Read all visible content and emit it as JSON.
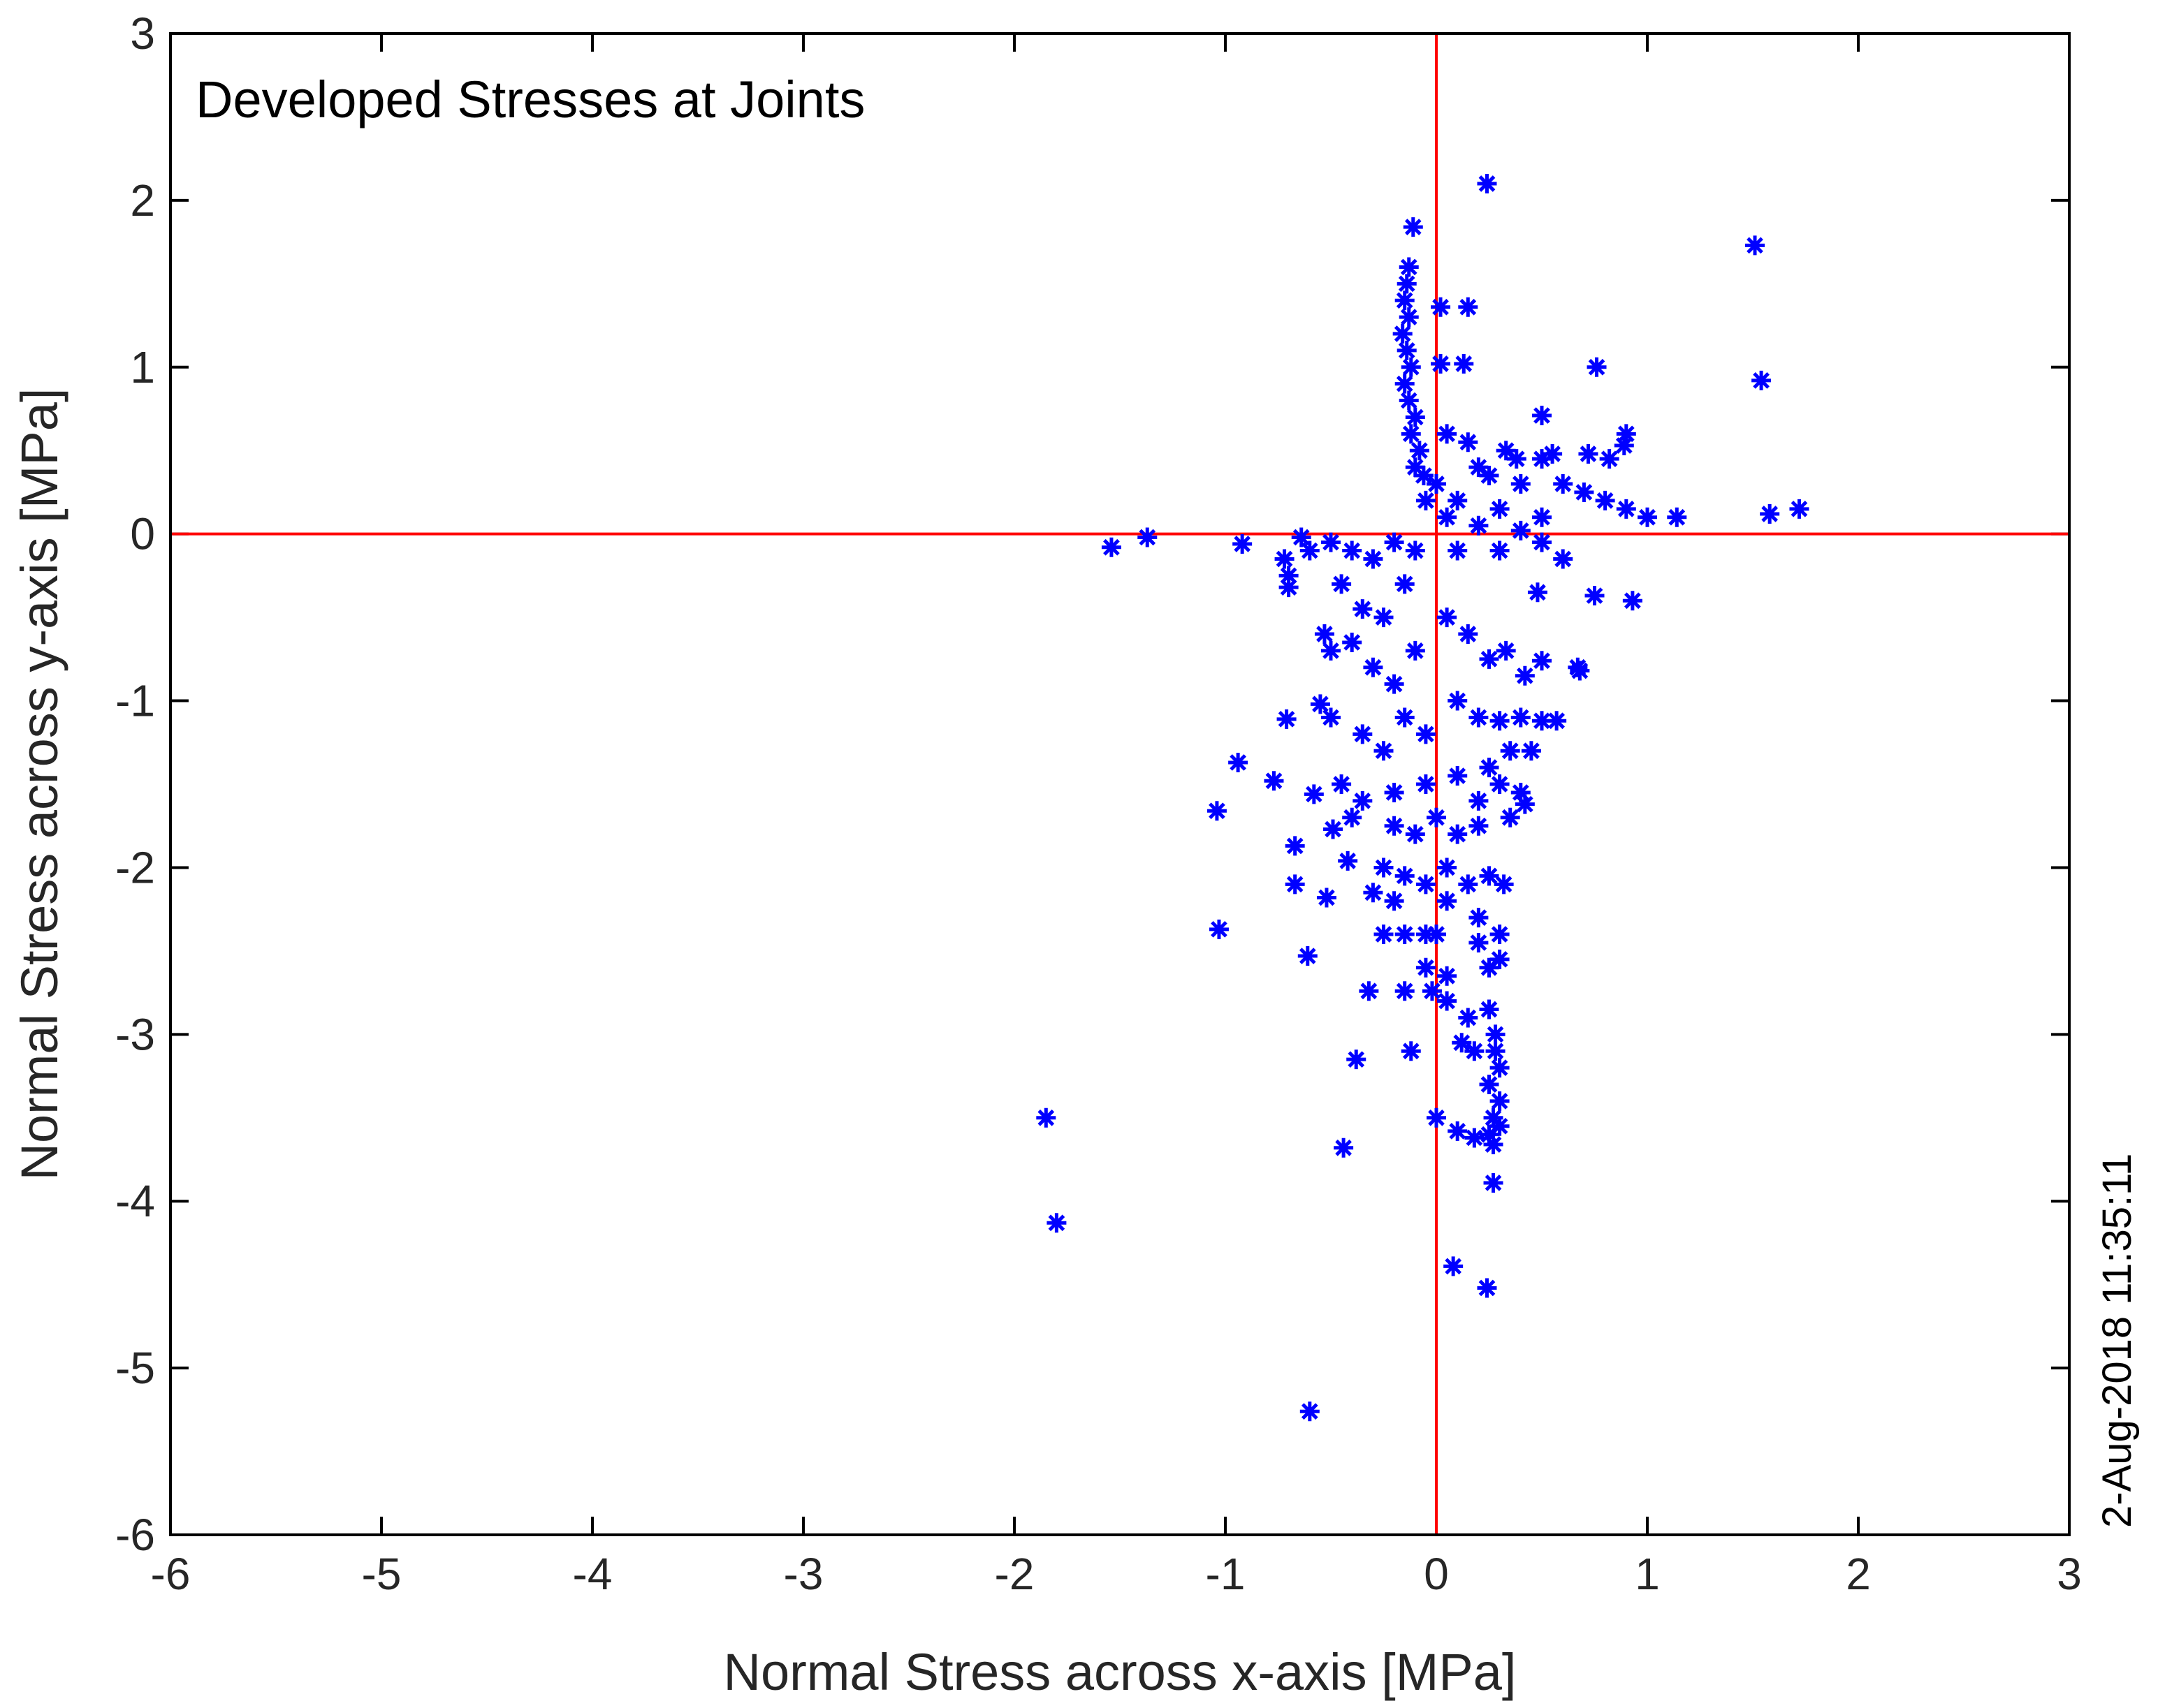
{
  "chart_data": {
    "type": "scatter",
    "annotation": "Developed Stresses at Joints",
    "xlabel": "Normal Stress across x-axis [MPa]",
    "ylabel": "Normal Stress across y-axis [MPa]",
    "timestamp": "2-Aug-2018 11:35:11",
    "xlim": [
      -6,
      3
    ],
    "ylim": [
      -6,
      3
    ],
    "xticks": [
      -6,
      -5,
      -4,
      -3,
      -2,
      -1,
      0,
      1,
      2,
      3
    ],
    "yticks": [
      -6,
      -5,
      -4,
      -3,
      -2,
      -1,
      0,
      1,
      2,
      3
    ],
    "grid": false,
    "legend": "none",
    "marker": "asterisk",
    "colors": {
      "marker": "#0000ff",
      "reference_lines": "#ff0000",
      "axes": "#000000"
    },
    "reference_lines": {
      "x": 0,
      "y": 0
    },
    "series": [
      {
        "points": [
          [
            0.24,
            2.1
          ],
          [
            -0.11,
            1.84
          ],
          [
            1.51,
            1.73
          ],
          [
            1.54,
            0.92
          ],
          [
            1.58,
            0.12
          ],
          [
            1.72,
            0.15
          ],
          [
            -0.13,
            1.6
          ],
          [
            -0.14,
            1.5
          ],
          [
            -0.15,
            1.4
          ],
          [
            -0.13,
            1.3
          ],
          [
            -0.16,
            1.2
          ],
          [
            -0.14,
            1.1
          ],
          [
            -0.12,
            1.0
          ],
          [
            -0.15,
            0.9
          ],
          [
            -0.13,
            0.8
          ],
          [
            -0.1,
            0.7
          ],
          [
            -0.12,
            0.6
          ],
          [
            -0.08,
            0.5
          ],
          [
            -0.1,
            0.4
          ],
          [
            -0.06,
            0.35
          ],
          [
            0.02,
            1.36
          ],
          [
            0.15,
            1.36
          ],
          [
            0.02,
            1.02
          ],
          [
            0.13,
            1.02
          ],
          [
            0.76,
            1.0
          ],
          [
            0.5,
            0.71
          ],
          [
            0.9,
            0.6
          ],
          [
            0.89,
            0.53
          ],
          [
            0.33,
            0.5
          ],
          [
            0.38,
            0.45
          ],
          [
            0.5,
            0.45
          ],
          [
            0.55,
            0.48
          ],
          [
            0.72,
            0.48
          ],
          [
            0.82,
            0.45
          ],
          [
            0.2,
            0.4
          ],
          [
            0.25,
            0.35
          ],
          [
            0.4,
            0.3
          ],
          [
            0.6,
            0.3
          ],
          [
            0.7,
            0.25
          ],
          [
            0.8,
            0.2
          ],
          [
            0.9,
            0.15
          ],
          [
            1.0,
            0.1
          ],
          [
            1.14,
            0.1
          ],
          [
            0.1,
            0.2
          ],
          [
            0.3,
            0.15
          ],
          [
            0.5,
            0.1
          ],
          [
            0.15,
            0.55
          ],
          [
            0.05,
            0.6
          ],
          [
            0.0,
            0.3
          ],
          [
            -0.05,
            0.2
          ],
          [
            0.05,
            0.1
          ],
          [
            0.2,
            0.05
          ],
          [
            0.4,
            0.02
          ],
          [
            -1.54,
            -0.08
          ],
          [
            -1.37,
            -0.02
          ],
          [
            -0.92,
            -0.06
          ],
          [
            -0.64,
            -0.02
          ],
          [
            -0.72,
            -0.15
          ],
          [
            -0.7,
            -0.25
          ],
          [
            -0.7,
            -0.32
          ],
          [
            -0.6,
            -0.1
          ],
          [
            -0.5,
            -0.05
          ],
          [
            -0.4,
            -0.1
          ],
          [
            -0.3,
            -0.15
          ],
          [
            -0.2,
            -0.05
          ],
          [
            -0.1,
            -0.1
          ],
          [
            0.1,
            -0.1
          ],
          [
            0.3,
            -0.1
          ],
          [
            0.5,
            -0.05
          ],
          [
            0.6,
            -0.15
          ],
          [
            0.48,
            -0.35
          ],
          [
            0.75,
            -0.37
          ],
          [
            0.93,
            -0.4
          ],
          [
            -0.45,
            -0.3
          ],
          [
            -0.35,
            -0.45
          ],
          [
            -0.25,
            -0.5
          ],
          [
            -0.15,
            -0.3
          ],
          [
            -0.53,
            -0.6
          ],
          [
            -0.5,
            -0.7
          ],
          [
            -0.4,
            -0.65
          ],
          [
            -0.3,
            -0.8
          ],
          [
            -0.2,
            -0.9
          ],
          [
            -0.1,
            -0.7
          ],
          [
            0.05,
            -0.5
          ],
          [
            0.15,
            -0.6
          ],
          [
            0.25,
            -0.75
          ],
          [
            0.33,
            -0.7
          ],
          [
            0.42,
            -0.85
          ],
          [
            0.5,
            -0.76
          ],
          [
            0.67,
            -0.8
          ],
          [
            0.68,
            -0.82
          ],
          [
            -0.71,
            -1.11
          ],
          [
            -0.55,
            -1.02
          ],
          [
            -0.5,
            -1.1
          ],
          [
            -0.35,
            -1.2
          ],
          [
            -0.25,
            -1.3
          ],
          [
            -0.15,
            -1.1
          ],
          [
            -0.05,
            -1.2
          ],
          [
            0.1,
            -1.0
          ],
          [
            0.2,
            -1.1
          ],
          [
            0.3,
            -1.12
          ],
          [
            0.4,
            -1.1
          ],
          [
            0.5,
            -1.12
          ],
          [
            0.57,
            -1.12
          ],
          [
            0.35,
            -1.3
          ],
          [
            0.45,
            -1.3
          ],
          [
            0.25,
            -1.4
          ],
          [
            -0.94,
            -1.37
          ],
          [
            -0.77,
            -1.48
          ],
          [
            -0.58,
            -1.56
          ],
          [
            -0.45,
            -1.5
          ],
          [
            -0.35,
            -1.6
          ],
          [
            -0.2,
            -1.55
          ],
          [
            -0.05,
            -1.5
          ],
          [
            0.1,
            -1.45
          ],
          [
            0.2,
            -1.6
          ],
          [
            0.3,
            -1.5
          ],
          [
            0.4,
            -1.55
          ],
          [
            0.42,
            -1.62
          ],
          [
            -1.04,
            -1.66
          ],
          [
            -0.49,
            -1.77
          ],
          [
            -0.4,
            -1.7
          ],
          [
            -0.2,
            -1.75
          ],
          [
            -0.1,
            -1.8
          ],
          [
            0.0,
            -1.7
          ],
          [
            0.1,
            -1.8
          ],
          [
            0.2,
            -1.75
          ],
          [
            0.35,
            -1.7
          ],
          [
            -0.67,
            -1.87
          ],
          [
            -0.42,
            -1.96
          ],
          [
            -0.25,
            -2.0
          ],
          [
            -0.15,
            -2.05
          ],
          [
            -0.05,
            -2.1
          ],
          [
            0.05,
            -2.0
          ],
          [
            0.15,
            -2.1
          ],
          [
            0.25,
            -2.05
          ],
          [
            0.32,
            -2.1
          ],
          [
            -0.67,
            -2.1
          ],
          [
            -0.52,
            -2.18
          ],
          [
            -0.3,
            -2.15
          ],
          [
            -0.2,
            -2.2
          ],
          [
            0.05,
            -2.2
          ],
          [
            0.2,
            -2.3
          ],
          [
            -1.03,
            -2.37
          ],
          [
            -0.25,
            -2.4
          ],
          [
            -0.15,
            -2.4
          ],
          [
            -0.05,
            -2.4
          ],
          [
            0.0,
            -2.4
          ],
          [
            0.2,
            -2.45
          ],
          [
            0.3,
            -2.4
          ],
          [
            -0.61,
            -2.53
          ],
          [
            -0.05,
            -2.6
          ],
          [
            0.05,
            -2.65
          ],
          [
            0.25,
            -2.6
          ],
          [
            0.3,
            -2.55
          ],
          [
            -0.32,
            -2.74
          ],
          [
            -0.15,
            -2.74
          ],
          [
            -0.02,
            -2.74
          ],
          [
            0.05,
            -2.8
          ],
          [
            0.15,
            -2.9
          ],
          [
            0.25,
            -2.85
          ],
          [
            0.28,
            -3.0
          ],
          [
            0.12,
            -3.05
          ],
          [
            -0.12,
            -3.1
          ],
          [
            0.18,
            -3.1
          ],
          [
            0.28,
            -3.1
          ],
          [
            -0.38,
            -3.15
          ],
          [
            0.3,
            -3.2
          ],
          [
            0.25,
            -3.3
          ],
          [
            0.3,
            -3.4
          ],
          [
            0.27,
            -3.5
          ],
          [
            0.3,
            -3.55
          ],
          [
            0.25,
            -3.6
          ],
          [
            0.27,
            -3.66
          ],
          [
            0.18,
            -3.62
          ],
          [
            0.0,
            -3.5
          ],
          [
            0.1,
            -3.58
          ],
          [
            -0.44,
            -3.68
          ],
          [
            0.27,
            -3.89
          ],
          [
            -1.85,
            -3.5
          ],
          [
            -1.8,
            -4.13
          ],
          [
            0.08,
            -4.39
          ],
          [
            0.24,
            -4.52
          ],
          [
            -0.6,
            -5.26
          ]
        ]
      }
    ]
  }
}
